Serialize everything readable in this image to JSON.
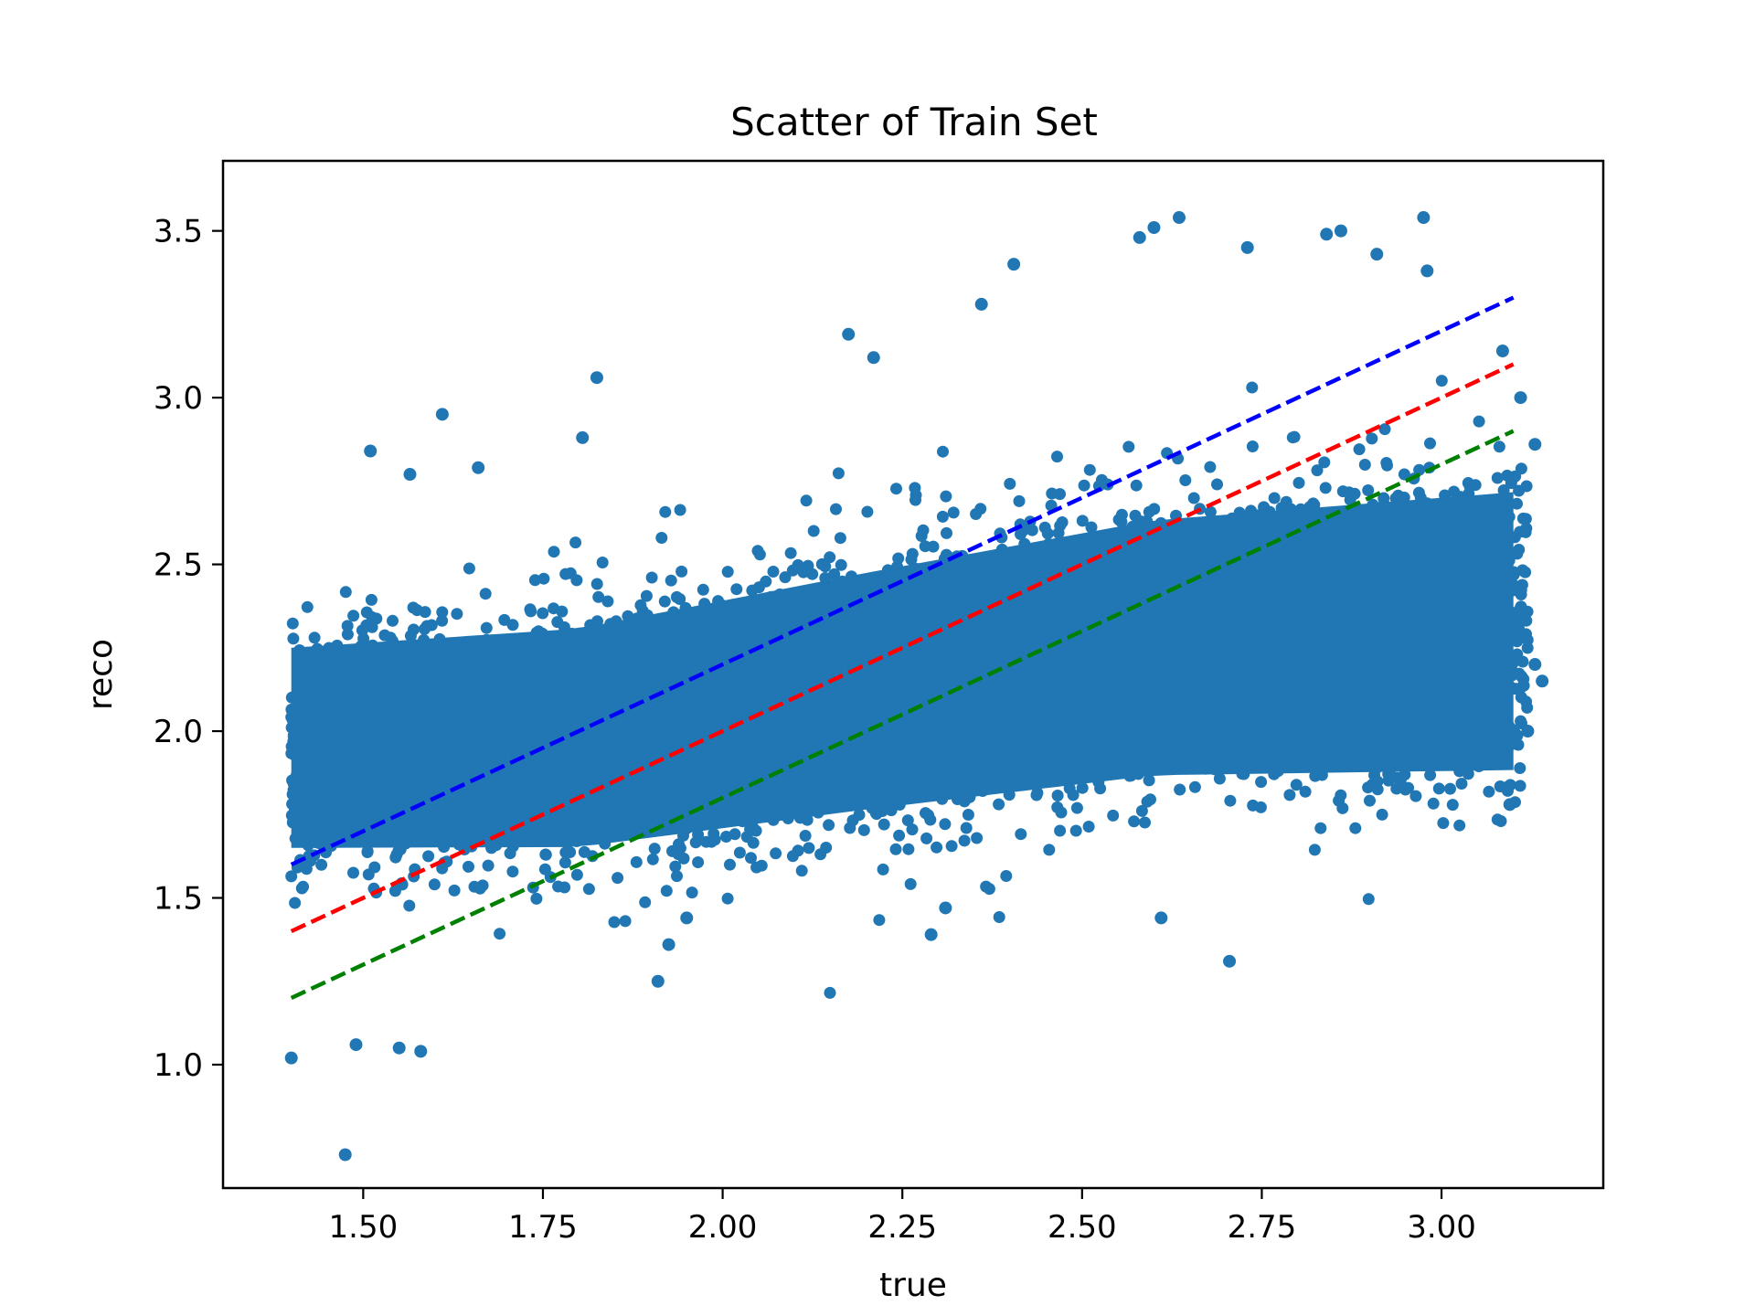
{
  "chart_data": {
    "type": "scatter",
    "title": "Scatter of Train Set",
    "xlabel": "true",
    "ylabel": "reco",
    "xlim": [
      1.305,
      3.225
    ],
    "ylim": [
      0.63,
      3.71
    ],
    "xticks": [
      1.5,
      1.75,
      2.0,
      2.25,
      2.5,
      2.75,
      3.0
    ],
    "xtick_labels": [
      "1.50",
      "1.75",
      "2.00",
      "2.25",
      "2.50",
      "2.75",
      "3.00"
    ],
    "yticks": [
      1.0,
      1.5,
      2.0,
      2.5,
      3.0,
      3.5
    ],
    "ytick_labels": [
      "1.0",
      "1.5",
      "2.0",
      "2.5",
      "3.0",
      "3.5"
    ],
    "grid": false,
    "legend": "none",
    "scatter_color": "#2077b4",
    "point_cloud": {
      "x_range": [
        1.4,
        3.15
      ],
      "center_line": [
        [
          1.4,
          1.95
        ],
        [
          1.8,
          1.98
        ],
        [
          2.2,
          2.12
        ],
        [
          2.6,
          2.25
        ],
        [
          3.1,
          2.3
        ]
      ],
      "spread_note": ""
    },
    "outliers": [
      [
        1.475,
        0.73
      ],
      [
        1.4,
        1.02
      ],
      [
        1.58,
        1.04
      ],
      [
        1.55,
        1.05
      ],
      [
        1.49,
        1.06
      ],
      [
        1.61,
        2.95
      ],
      [
        1.51,
        2.84
      ],
      [
        1.825,
        3.06
      ],
      [
        1.805,
        2.88
      ],
      [
        1.66,
        2.79
      ],
      [
        1.565,
        2.77
      ],
      [
        2.175,
        3.19
      ],
      [
        2.21,
        3.12
      ],
      [
        2.36,
        3.28
      ],
      [
        2.405,
        3.4
      ],
      [
        2.58,
        3.48
      ],
      [
        2.6,
        3.51
      ],
      [
        2.635,
        3.54
      ],
      [
        2.73,
        3.45
      ],
      [
        2.975,
        3.54
      ],
      [
        2.84,
        3.49
      ],
      [
        2.86,
        3.5
      ],
      [
        2.98,
        3.38
      ],
      [
        2.91,
        3.43
      ],
      [
        2.29,
        1.39
      ],
      [
        2.31,
        1.47
      ],
      [
        2.61,
        1.44
      ],
      [
        2.705,
        1.31
      ],
      [
        1.91,
        1.25
      ],
      [
        1.925,
        1.36
      ],
      [
        1.95,
        1.44
      ],
      [
        3.095,
        1.78
      ],
      [
        3.09,
        1.83
      ],
      [
        3.14,
        2.15
      ],
      [
        3.13,
        2.2
      ],
      [
        3.12,
        2.0
      ],
      [
        3.13,
        2.86
      ],
      [
        3.11,
        3.0
      ],
      [
        3.085,
        3.14
      ]
    ],
    "lines": [
      {
        "color": "#0000ff",
        "style": "dashed",
        "x": [
          1.4,
          3.1
        ],
        "y": [
          1.6,
          3.3
        ]
      },
      {
        "color": "#ff0000",
        "style": "dashed",
        "x": [
          1.4,
          3.1
        ],
        "y": [
          1.4,
          3.1
        ]
      },
      {
        "color": "#008000",
        "style": "dashed",
        "x": [
          1.4,
          3.1
        ],
        "y": [
          1.2,
          2.9
        ]
      }
    ]
  }
}
